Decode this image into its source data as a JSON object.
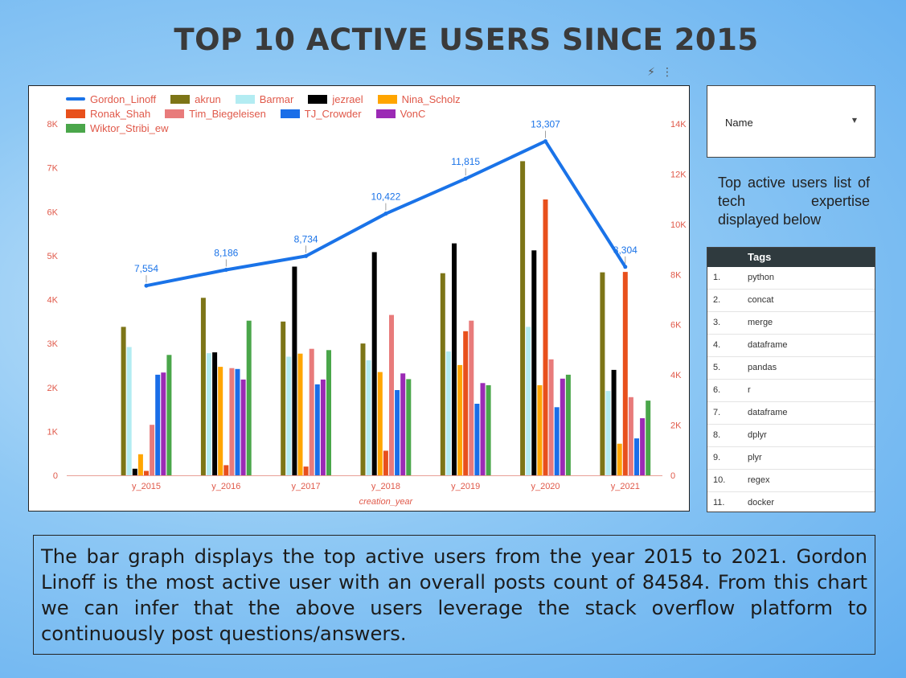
{
  "title": "TOP 10 ACTIVE USERS SINCE 2015",
  "toolbar": {
    "quick_icon": "bolt-icon",
    "menu_icon": "kebab-menu-icon"
  },
  "filter": {
    "label": "Name"
  },
  "side_text": "Top active users list of tech expertise displayed below",
  "tags_table": {
    "header": "Tags",
    "rows": [
      {
        "index": "1.",
        "tag": "python"
      },
      {
        "index": "2.",
        "tag": "concat"
      },
      {
        "index": "3.",
        "tag": "merge"
      },
      {
        "index": "4.",
        "tag": "dataframe"
      },
      {
        "index": "5.",
        "tag": "pandas"
      },
      {
        "index": "6.",
        "tag": "r"
      },
      {
        "index": "7.",
        "tag": "dataframe"
      },
      {
        "index": "8.",
        "tag": "dplyr"
      },
      {
        "index": "9.",
        "tag": "plyr"
      },
      {
        "index": "10.",
        "tag": "regex"
      },
      {
        "index": "11.",
        "tag": "docker"
      }
    ]
  },
  "description": "The bar graph displays the top active users from the year 2015 to 2021. Gordon Linoff is the most active user with an overall posts count of 84584. From this chart we can infer that the above users leverage the stack overflow platform to continuously post questions/answers.",
  "chart_data": {
    "type": "bar",
    "xlabel": "creation_year",
    "categories": [
      "y_2015",
      "y_2016",
      "y_2017",
      "y_2018",
      "y_2019",
      "y_2020",
      "y_2021"
    ],
    "y_left": {
      "range": [
        0,
        8000
      ],
      "ticks": [
        "0",
        "1K",
        "2K",
        "3K",
        "4K",
        "5K",
        "6K",
        "7K",
        "8K"
      ]
    },
    "y_right": {
      "range": [
        0,
        14000
      ],
      "ticks": [
        "0",
        "2K",
        "4K",
        "6K",
        "8K",
        "10K",
        "12K",
        "14K"
      ]
    },
    "line_series": {
      "name": "Gordon_Linoff",
      "axis": "right",
      "color": "#1a73e8",
      "values": [
        7554,
        8186,
        8734,
        10422,
        11815,
        13307,
        8304
      ],
      "labels": [
        "7,554",
        "8,186",
        "8,734",
        "10,422",
        "11,815",
        "13,307",
        "8,304"
      ]
    },
    "series": [
      {
        "name": "akrun",
        "color": "#7d7517",
        "values": [
          3380,
          4040,
          3500,
          3000,
          4600,
          7150,
          4620
        ]
      },
      {
        "name": "Barmar",
        "color": "#b3ecf2",
        "values": [
          2920,
          2780,
          2700,
          2620,
          2820,
          3380,
          1920
        ]
      },
      {
        "name": "jezrael",
        "color": "#000000",
        "values": [
          150,
          2800,
          4750,
          5080,
          5280,
          5120,
          2400
        ]
      },
      {
        "name": "Nina_Scholz",
        "color": "#ffa500",
        "values": [
          480,
          2470,
          2770,
          2350,
          2510,
          2050,
          720
        ]
      },
      {
        "name": "Ronak_Shah",
        "color": "#e8501c",
        "values": [
          100,
          230,
          200,
          560,
          3280,
          6280,
          4630
        ]
      },
      {
        "name": "Tim_Biegeleisen",
        "color": "#e87b7b",
        "values": [
          1150,
          2440,
          2880,
          3650,
          3520,
          2640,
          1780
        ]
      },
      {
        "name": "TJ_Crowder",
        "color": "#1a6ee8",
        "values": [
          2290,
          2420,
          2070,
          1940,
          1630,
          1550,
          840
        ]
      },
      {
        "name": "VonC",
        "color": "#9b2ab5",
        "values": [
          2340,
          2180,
          2180,
          2320,
          2100,
          2200,
          1300
        ]
      },
      {
        "name": "Wiktor_Stribi_ew",
        "color": "#4aa64a",
        "values": [
          2740,
          3520,
          2850,
          2190,
          2050,
          2290,
          1700
        ]
      }
    ],
    "legend_position": "top",
    "grid": false
  }
}
